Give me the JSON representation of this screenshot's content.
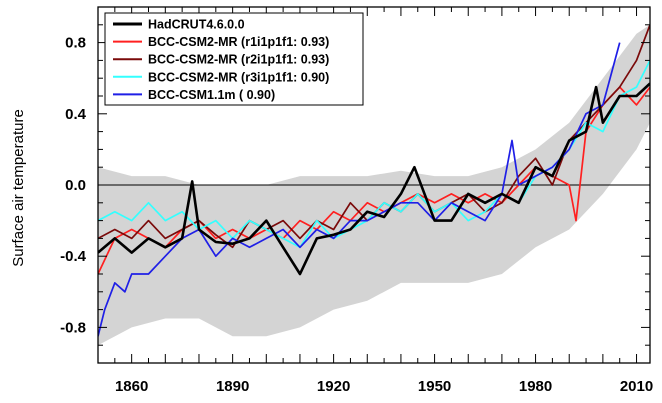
{
  "chart_data": {
    "type": "line",
    "ylabel": "Surface air temperature",
    "xlabel": "",
    "xlim": [
      1850,
      2014
    ],
    "ylim": [
      -1.0,
      1.0
    ],
    "x_ticks": [
      1860,
      1890,
      1920,
      1950,
      1980,
      2010
    ],
    "y_ticks": [
      -0.8,
      -0.4,
      0.0,
      0.4,
      0.8
    ],
    "y_tick_labels": [
      "-0.8",
      "-0.4",
      "0.0",
      "0.4",
      "0.8"
    ],
    "zero_line": true,
    "grid": false,
    "legend_position": "top-left",
    "legend": [
      {
        "label": "HadCRUT4.6.0.0",
        "color": "#000000"
      },
      {
        "label": "BCC-CSM2-MR (r1i1p1f1:  0.93)",
        "color": "#ff2020"
      },
      {
        "label": "BCC-CSM2-MR (r2i1p1f1:  0.93)",
        "color": "#7a0a0a"
      },
      {
        "label": "BCC-CSM2-MR (r3i1p1f1:  0.90)",
        "color": "#33ffff"
      },
      {
        "label": "BCC-CSM1.1m ( 0.90)",
        "color": "#1f1fe6"
      }
    ],
    "envelope": {
      "color": "#d4d4d4",
      "x": [
        1850,
        1860,
        1870,
        1880,
        1890,
        1900,
        1910,
        1920,
        1930,
        1940,
        1950,
        1960,
        1970,
        1980,
        1990,
        2000,
        2010,
        2014
      ],
      "upper": [
        0.1,
        0.05,
        0.05,
        0.0,
        0.0,
        0.0,
        0.05,
        0.05,
        0.05,
        0.08,
        0.05,
        0.05,
        0.1,
        0.2,
        0.35,
        0.6,
        0.85,
        0.9
      ],
      "lower": [
        -0.9,
        -0.8,
        -0.75,
        -0.75,
        -0.85,
        -0.85,
        -0.8,
        -0.7,
        -0.65,
        -0.55,
        -0.55,
        -0.55,
        -0.5,
        -0.35,
        -0.25,
        -0.05,
        0.2,
        0.35
      ]
    },
    "series": [
      {
        "name": "HadCRUT4.6.0.0",
        "color": "#000000",
        "width": 2.6,
        "x": [
          1850,
          1855,
          1860,
          1865,
          1870,
          1875,
          1878,
          1880,
          1885,
          1890,
          1895,
          1900,
          1905,
          1910,
          1915,
          1920,
          1925,
          1930,
          1935,
          1940,
          1944,
          1950,
          1955,
          1960,
          1965,
          1970,
          1975,
          1980,
          1985,
          1990,
          1995,
          1998,
          2000,
          2005,
          2010,
          2014
        ],
        "y": [
          -0.38,
          -0.3,
          -0.38,
          -0.3,
          -0.35,
          -0.3,
          0.02,
          -0.25,
          -0.32,
          -0.33,
          -0.3,
          -0.2,
          -0.35,
          -0.5,
          -0.3,
          -0.28,
          -0.25,
          -0.15,
          -0.18,
          -0.05,
          0.1,
          -0.2,
          -0.2,
          -0.05,
          -0.1,
          -0.05,
          -0.1,
          0.1,
          0.05,
          0.25,
          0.3,
          0.55,
          0.35,
          0.5,
          0.5,
          0.57
        ]
      },
      {
        "name": "BCC-CSM2-MR (r1i1p1f1:  0.93)",
        "color": "#ff2020",
        "width": 1.7,
        "x": [
          1850,
          1855,
          1860,
          1865,
          1870,
          1875,
          1880,
          1885,
          1890,
          1895,
          1900,
          1905,
          1910,
          1915,
          1920,
          1925,
          1930,
          1935,
          1940,
          1945,
          1950,
          1955,
          1960,
          1965,
          1970,
          1975,
          1980,
          1985,
          1990,
          1992,
          1995,
          2000,
          2005,
          2010,
          2014
        ],
        "y": [
          -0.5,
          -0.3,
          -0.25,
          -0.3,
          -0.35,
          -0.25,
          -0.2,
          -0.3,
          -0.25,
          -0.3,
          -0.25,
          -0.3,
          -0.2,
          -0.25,
          -0.15,
          -0.2,
          -0.1,
          -0.15,
          -0.1,
          -0.05,
          -0.1,
          -0.05,
          -0.1,
          -0.05,
          -0.1,
          0.0,
          0.1,
          0.05,
          0.0,
          -0.2,
          0.3,
          0.45,
          0.55,
          0.45,
          0.55
        ]
      },
      {
        "name": "BCC-CSM2-MR (r2i1p1f1:  0.93)",
        "color": "#7a0a0a",
        "width": 1.7,
        "x": [
          1850,
          1855,
          1860,
          1865,
          1870,
          1875,
          1880,
          1885,
          1890,
          1895,
          1900,
          1905,
          1910,
          1915,
          1920,
          1925,
          1930,
          1935,
          1940,
          1945,
          1950,
          1955,
          1960,
          1965,
          1970,
          1975,
          1980,
          1985,
          1990,
          1995,
          2000,
          2005,
          2010,
          2014
        ],
        "y": [
          -0.3,
          -0.25,
          -0.3,
          -0.2,
          -0.3,
          -0.25,
          -0.2,
          -0.28,
          -0.35,
          -0.2,
          -0.25,
          -0.2,
          -0.3,
          -0.2,
          -0.25,
          -0.1,
          -0.2,
          -0.1,
          -0.15,
          -0.05,
          -0.15,
          -0.1,
          -0.05,
          -0.15,
          -0.1,
          0.05,
          0.15,
          0.0,
          0.25,
          0.35,
          0.45,
          0.55,
          0.7,
          0.9
        ]
      },
      {
        "name": "BCC-CSM2-MR (r3i1p1f1:  0.90)",
        "color": "#33ffff",
        "width": 1.7,
        "x": [
          1850,
          1855,
          1860,
          1865,
          1870,
          1875,
          1880,
          1885,
          1890,
          1895,
          1900,
          1905,
          1910,
          1915,
          1920,
          1925,
          1930,
          1935,
          1940,
          1945,
          1950,
          1955,
          1960,
          1965,
          1970,
          1975,
          1980,
          1985,
          1990,
          1995,
          2000,
          2005,
          2010,
          2014
        ],
        "y": [
          -0.2,
          -0.15,
          -0.2,
          -0.1,
          -0.2,
          -0.15,
          -0.25,
          -0.2,
          -0.3,
          -0.2,
          -0.25,
          -0.3,
          -0.35,
          -0.2,
          -0.3,
          -0.25,
          -0.2,
          -0.1,
          -0.15,
          -0.05,
          -0.15,
          -0.1,
          -0.2,
          -0.15,
          -0.05,
          -0.1,
          0.05,
          0.1,
          0.2,
          0.35,
          0.3,
          0.5,
          0.55,
          0.7
        ]
      },
      {
        "name": "BCC-CSM1.1m ( 0.90)",
        "color": "#1f1fe6",
        "width": 1.7,
        "x": [
          1850,
          1852,
          1855,
          1858,
          1860,
          1865,
          1870,
          1875,
          1880,
          1885,
          1890,
          1895,
          1900,
          1905,
          1910,
          1915,
          1920,
          1925,
          1930,
          1935,
          1940,
          1945,
          1950,
          1955,
          1960,
          1965,
          1970,
          1973,
          1975,
          1980,
          1985,
          1990,
          1995,
          2000,
          2005
        ],
        "y": [
          -0.85,
          -0.7,
          -0.55,
          -0.6,
          -0.5,
          -0.5,
          -0.4,
          -0.3,
          -0.25,
          -0.4,
          -0.3,
          -0.35,
          -0.3,
          -0.25,
          -0.35,
          -0.25,
          -0.3,
          -0.2,
          -0.2,
          -0.15,
          -0.1,
          -0.1,
          -0.2,
          -0.1,
          -0.15,
          -0.2,
          -0.05,
          0.25,
          0.0,
          0.05,
          0.1,
          0.2,
          0.4,
          0.45,
          0.8
        ]
      }
    ]
  }
}
